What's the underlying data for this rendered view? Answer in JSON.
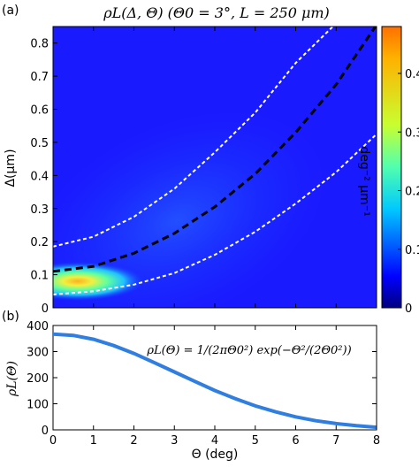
{
  "figure": {
    "panel_a_label": "(a)",
    "panel_b_label": "(b)"
  },
  "chart_data": [
    {
      "type": "heatmap",
      "title": "ρL(Δ, Θ) (Θ0 = 3°, L = 250 μm)",
      "xlabel": "",
      "ylabel": "Δ(μm)",
      "xlim": [
        0,
        8
      ],
      "ylim": [
        0,
        0.85
      ],
      "x_ticks": [
        0,
        1,
        2,
        3,
        4,
        5,
        6,
        7,
        8
      ],
      "y_ticks": [
        "0",
        "0.1",
        "0.2",
        "0.3",
        "0.4",
        "0.5",
        "0.6",
        "0.7",
        "0.8"
      ],
      "colorbar": {
        "label": "deg⁻² μm⁻¹",
        "range": [
          0,
          0.48
        ],
        "ticks": [
          "0",
          "0.1",
          "0.2",
          "0.3",
          "0.4"
        ],
        "colormap": "jet"
      },
      "peak": {
        "theta": 0.5,
        "delta": 0.08,
        "value": 0.45
      },
      "curves": [
        {
          "style": "black-dashed",
          "points": [
            [
              0,
              0.11
            ],
            [
              1,
              0.125
            ],
            [
              2,
              0.165
            ],
            [
              3,
              0.225
            ],
            [
              4,
              0.305
            ],
            [
              5,
              0.405
            ],
            [
              6,
              0.53
            ],
            [
              7,
              0.675
            ],
            [
              8,
              0.855
            ]
          ]
        },
        {
          "style": "white-dashed",
          "points": [
            [
              0,
              0.185
            ],
            [
              1,
              0.215
            ],
            [
              2,
              0.275
            ],
            [
              3,
              0.36
            ],
            [
              4,
              0.47
            ],
            [
              5,
              0.59
            ],
            [
              6,
              0.74
            ],
            [
              7,
              0.86
            ]
          ]
        },
        {
          "style": "white-dashed",
          "points": [
            [
              0,
              0.04
            ],
            [
              1,
              0.05
            ],
            [
              2,
              0.07
            ],
            [
              3,
              0.105
            ],
            [
              4,
              0.16
            ],
            [
              5,
              0.23
            ],
            [
              6,
              0.315
            ],
            [
              7,
              0.41
            ],
            [
              8,
              0.525
            ]
          ]
        }
      ]
    },
    {
      "type": "line",
      "title": "",
      "xlabel": "Θ (deg)",
      "ylabel": "ρL(Θ)",
      "xlim": [
        0,
        8
      ],
      "ylim": [
        0,
        400
      ],
      "x_ticks": [
        "0",
        "1",
        "2",
        "3",
        "4",
        "5",
        "6",
        "7",
        "8"
      ],
      "y_ticks": [
        "0",
        "100",
        "200",
        "300",
        "400"
      ],
      "formula": "ρL(Θ) = 1/(2πΘ0²) exp(−Θ²/(2Θ0²))",
      "series": [
        {
          "color": "#2f7ee0",
          "x": [
            0,
            0.5,
            1,
            1.5,
            2,
            2.5,
            3,
            3.5,
            4,
            4.5,
            5,
            5.5,
            6,
            6.5,
            7,
            7.5,
            8
          ],
          "values": [
            367,
            362,
            347,
            323,
            293,
            258,
            222,
            186,
            151,
            120,
            92,
            69,
            50,
            35,
            24,
            16,
            10
          ]
        }
      ]
    }
  ]
}
